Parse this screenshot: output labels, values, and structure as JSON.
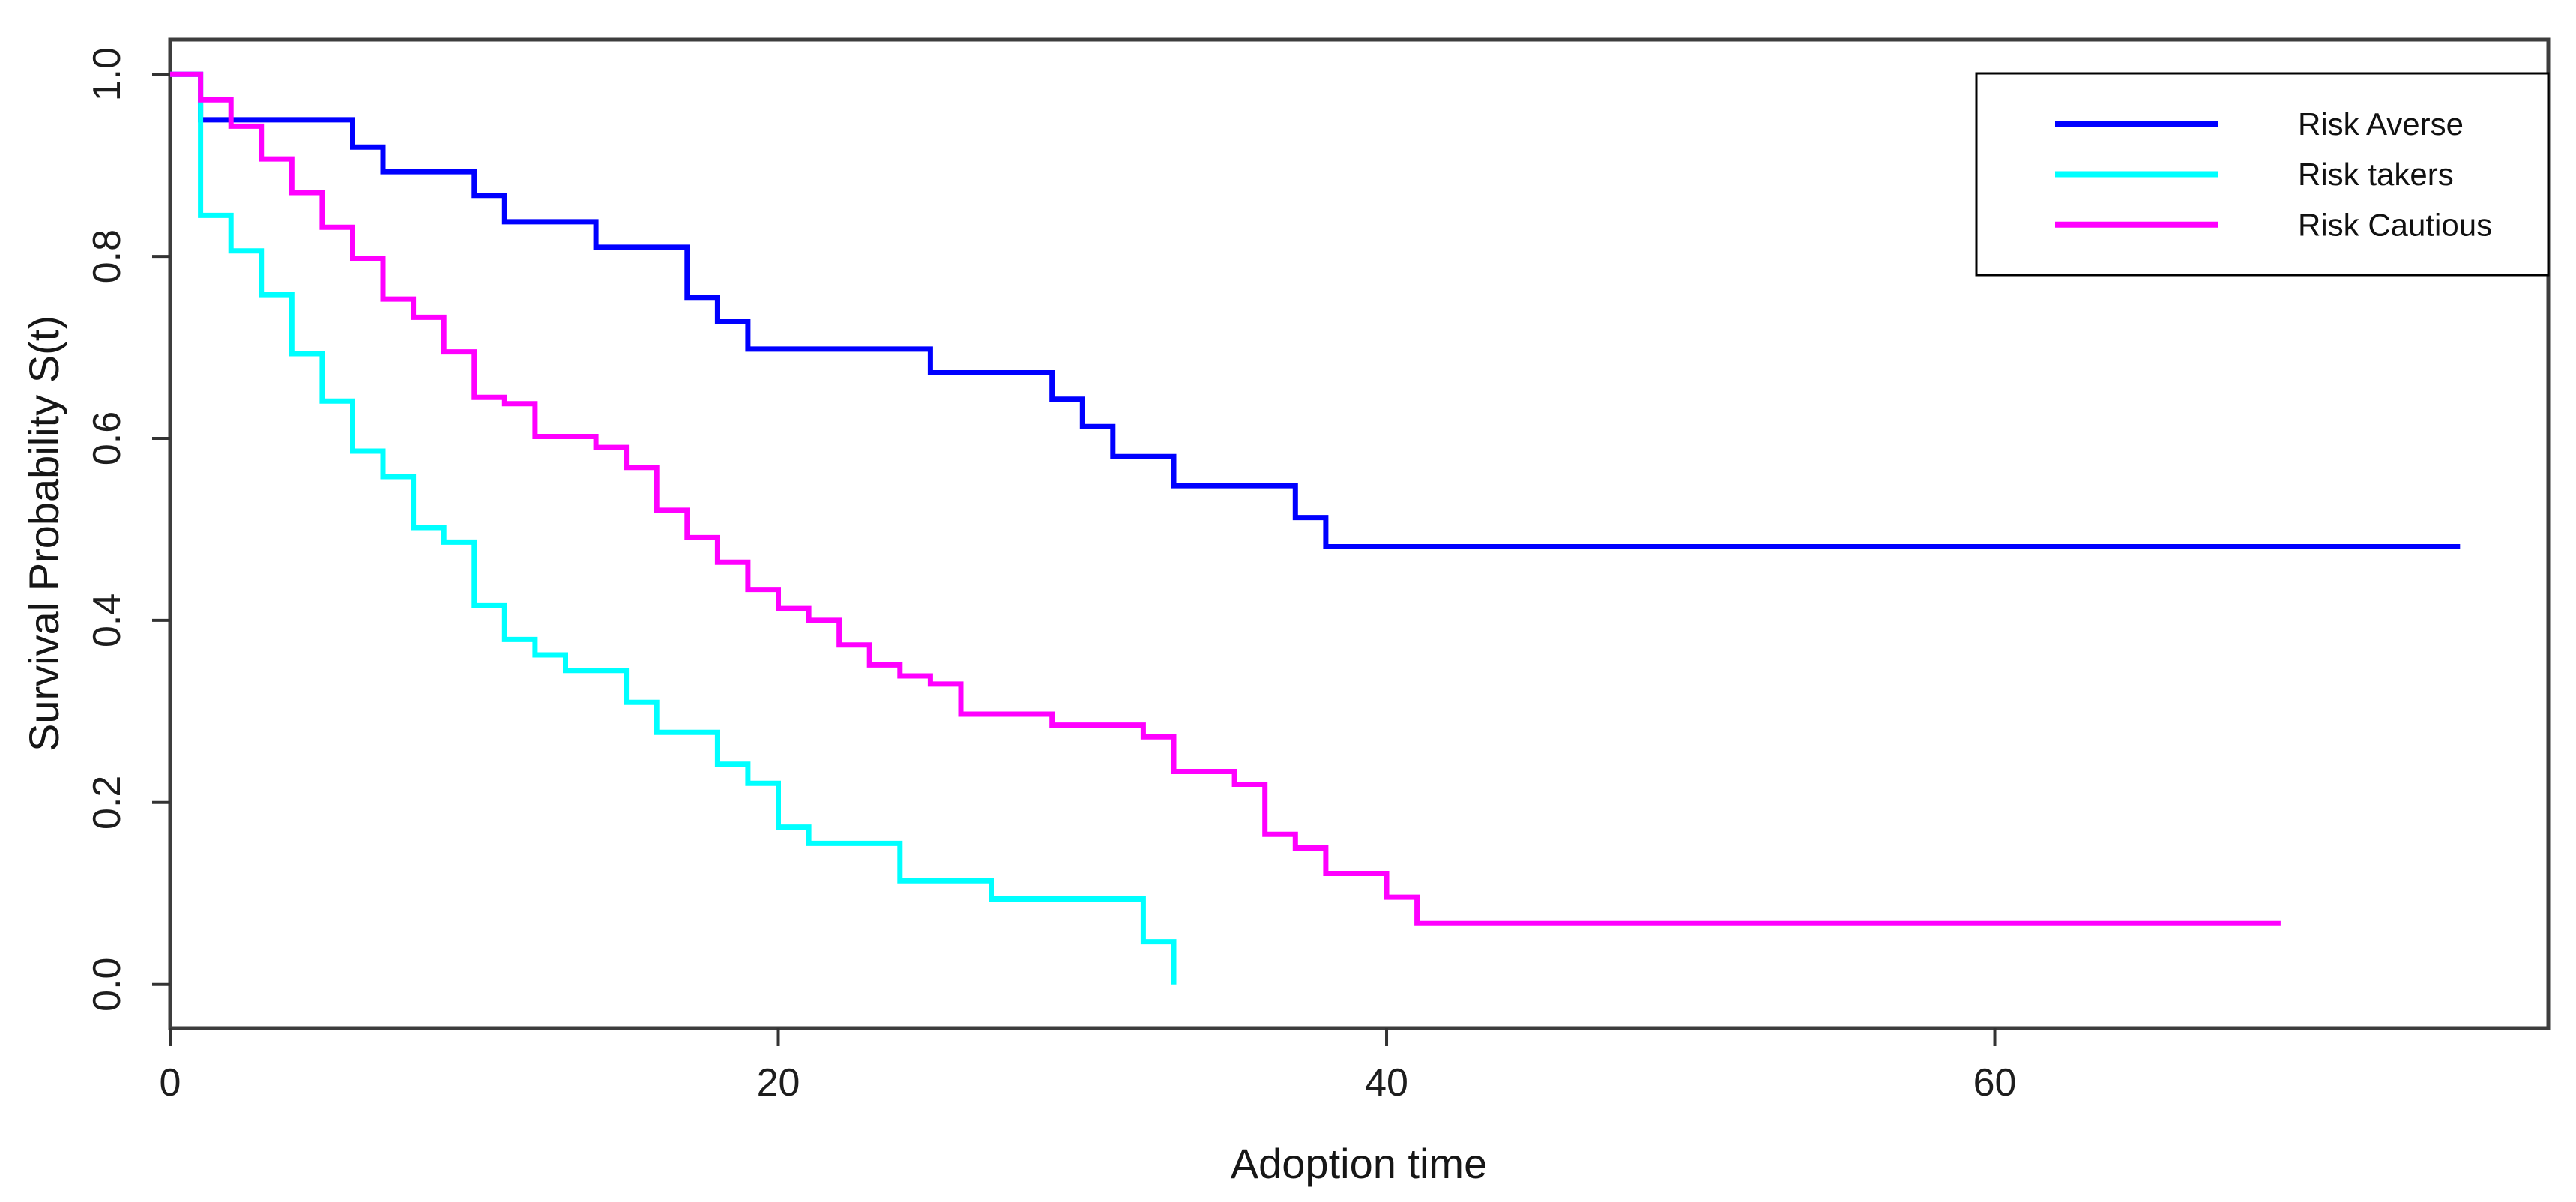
{
  "chart_data": {
    "type": "line",
    "subtype": "kaplan-meier-step-survival",
    "title": "",
    "xlabel": "Adoption time",
    "ylabel": "Survival Probability S(t)",
    "xlim": [
      0,
      78.2
    ],
    "ylim": [
      -0.048,
      1.038
    ],
    "x_ticks": [
      0,
      20,
      40,
      60
    ],
    "y_ticks": [
      0.0,
      0.2,
      0.4,
      0.6,
      0.8,
      1.0
    ],
    "y_tick_decimals": 1,
    "grid": false,
    "legend": {
      "position": "top-right",
      "border": true,
      "entries": [
        "Risk Averse",
        "Risk takers",
        "Risk Cautious"
      ]
    },
    "series": [
      {
        "name": "Risk Averse",
        "color": "#0000FF",
        "points": [
          [
            0,
            1.0
          ],
          [
            1,
            0.95
          ],
          [
            6,
            0.92
          ],
          [
            7,
            0.893
          ],
          [
            10,
            0.867
          ],
          [
            11,
            0.838
          ],
          [
            14,
            0.81
          ],
          [
            17,
            0.755
          ],
          [
            18,
            0.728
          ],
          [
            19,
            0.698
          ],
          [
            25,
            0.672
          ],
          [
            29,
            0.643
          ],
          [
            30,
            0.613
          ],
          [
            31,
            0.58
          ],
          [
            33,
            0.548
          ],
          [
            37,
            0.513
          ],
          [
            38,
            0.481
          ],
          [
            75.3,
            0.481
          ]
        ]
      },
      {
        "name": "Risk takers",
        "color": "#00FFFF",
        "points": [
          [
            0,
            1.0
          ],
          [
            1,
            0.845
          ],
          [
            2,
            0.806
          ],
          [
            3,
            0.758
          ],
          [
            4,
            0.693
          ],
          [
            5,
            0.641
          ],
          [
            6,
            0.586
          ],
          [
            7,
            0.558
          ],
          [
            8,
            0.502
          ],
          [
            9,
            0.486
          ],
          [
            10,
            0.416
          ],
          [
            11,
            0.379
          ],
          [
            12,
            0.362
          ],
          [
            13,
            0.345
          ],
          [
            15,
            0.31
          ],
          [
            16,
            0.277
          ],
          [
            18,
            0.242
          ],
          [
            19,
            0.221
          ],
          [
            20,
            0.173
          ],
          [
            21,
            0.155
          ],
          [
            24,
            0.114
          ],
          [
            27,
            0.094
          ],
          [
            32,
            0.047
          ],
          [
            33,
            0.0
          ]
        ]
      },
      {
        "name": "Risk Cautious",
        "color": "#FF00FF",
        "points": [
          [
            0,
            1.0
          ],
          [
            1,
            0.972
          ],
          [
            2,
            0.943
          ],
          [
            3,
            0.907
          ],
          [
            4,
            0.87
          ],
          [
            5,
            0.832
          ],
          [
            6,
            0.798
          ],
          [
            7,
            0.753
          ],
          [
            8,
            0.733
          ],
          [
            9,
            0.695
          ],
          [
            10,
            0.645
          ],
          [
            11,
            0.638
          ],
          [
            12,
            0.602
          ],
          [
            14,
            0.59
          ],
          [
            15,
            0.568
          ],
          [
            16,
            0.521
          ],
          [
            17,
            0.491
          ],
          [
            18,
            0.464
          ],
          [
            19,
            0.434
          ],
          [
            20,
            0.413
          ],
          [
            21,
            0.4
          ],
          [
            22,
            0.373
          ],
          [
            23,
            0.351
          ],
          [
            24,
            0.339
          ],
          [
            25,
            0.33
          ],
          [
            26,
            0.297
          ],
          [
            29,
            0.285
          ],
          [
            32,
            0.272
          ],
          [
            33,
            0.234
          ],
          [
            35,
            0.22
          ],
          [
            36,
            0.165
          ],
          [
            37,
            0.15
          ],
          [
            38,
            0.122
          ],
          [
            40,
            0.096
          ],
          [
            41,
            0.067
          ],
          [
            69.4,
            0.067
          ]
        ]
      }
    ]
  }
}
